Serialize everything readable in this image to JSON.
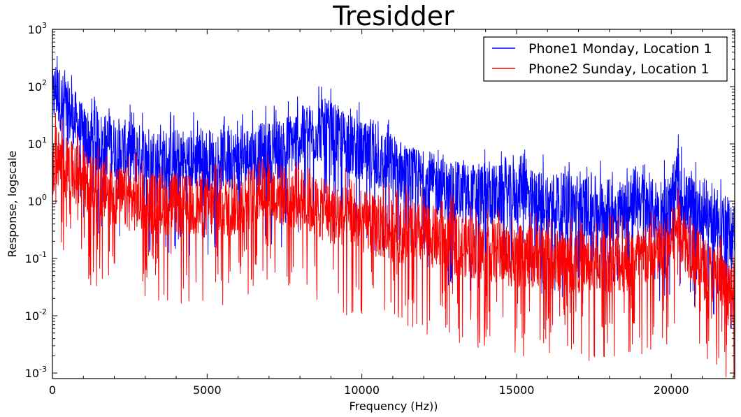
{
  "chart_data": {
    "type": "line",
    "title": "Tresidder",
    "xlabel": "Frequency (Hz))",
    "ylabel": "Response, logscale",
    "xlim": [
      0,
      22050
    ],
    "ylim": [
      0.0008,
      1000
    ],
    "yscale": "log",
    "xticks": [
      0,
      5000,
      10000,
      15000,
      20000
    ],
    "xtick_labels": [
      "0",
      "5000",
      "10000",
      "15000",
      "20000"
    ],
    "yticks": [
      0.001,
      0.01,
      0.1,
      1,
      10,
      100,
      1000
    ],
    "ytick_labels": [
      {
        "base": "10",
        "exp": "-3"
      },
      {
        "base": "10",
        "exp": "-2"
      },
      {
        "base": "10",
        "exp": "-1"
      },
      {
        "base": "10",
        "exp": "0"
      },
      {
        "base": "10",
        "exp": "1"
      },
      {
        "base": "10",
        "exp": "2"
      },
      {
        "base": "10",
        "exp": "3"
      }
    ],
    "grid": false,
    "legend_position": "top-right",
    "series": [
      {
        "name": "Phone1 Monday, Location 1",
        "color": "#0000ff",
        "x": [
          0,
          100,
          200,
          300,
          500,
          800,
          1000,
          1500,
          2000,
          2500,
          3000,
          3500,
          4000,
          4500,
          5000,
          5500,
          6000,
          6500,
          7000,
          7500,
          8000,
          8500,
          8800,
          9000,
          9500,
          10000,
          10500,
          11000,
          11500,
          12000,
          12500,
          13000,
          13500,
          14000,
          14500,
          15000,
          15200,
          15400,
          15600,
          16000,
          16500,
          17000,
          17500,
          18000,
          18500,
          18900,
          19200,
          19500,
          20000,
          20200,
          20400,
          20800,
          21000,
          21500,
          22000
        ],
        "y": [
          60,
          100,
          80,
          60,
          40,
          25,
          15,
          12,
          10,
          8,
          7,
          6,
          6,
          6,
          6,
          6,
          6,
          7,
          8,
          10,
          14,
          18,
          20,
          18,
          12,
          8,
          6,
          5,
          3,
          2.5,
          2,
          1.6,
          1.5,
          1.5,
          1.4,
          1.4,
          2.5,
          1.2,
          1.1,
          1.1,
          1,
          1,
          0.9,
          0.8,
          0.8,
          1.5,
          0.8,
          0.8,
          1,
          3,
          1,
          0.9,
          0.8,
          0.6,
          0.3
        ]
      },
      {
        "name": "Phone2 Sunday, Location 1",
        "color": "#ff0000",
        "x": [
          0,
          100,
          200,
          300,
          500,
          800,
          1000,
          1500,
          2000,
          2500,
          3000,
          3500,
          4000,
          4500,
          5000,
          5500,
          6000,
          6500,
          6700,
          7000,
          7500,
          8000,
          8500,
          9000,
          9500,
          10000,
          10500,
          11000,
          11500,
          12000,
          12500,
          13000,
          13500,
          14000,
          14500,
          15000,
          15500,
          16000,
          16500,
          17000,
          17500,
          18000,
          18500,
          19000,
          19500,
          20000,
          20200,
          20500,
          21000,
          21500,
          22000
        ],
        "y": [
          3,
          8,
          6,
          5,
          4,
          3,
          2.5,
          1.8,
          1.4,
          1.2,
          1.1,
          1,
          1,
          0.9,
          0.9,
          0.9,
          1,
          1.4,
          2,
          1.6,
          1.4,
          1.2,
          0.9,
          0.7,
          0.6,
          0.5,
          0.4,
          0.35,
          0.32,
          0.3,
          0.25,
          0.2,
          0.18,
          0.15,
          0.14,
          0.12,
          0.12,
          0.11,
          0.1,
          0.1,
          0.1,
          0.1,
          0.1,
          0.12,
          0.12,
          0.2,
          0.5,
          0.2,
          0.08,
          0.05,
          0.02
        ]
      }
    ]
  }
}
